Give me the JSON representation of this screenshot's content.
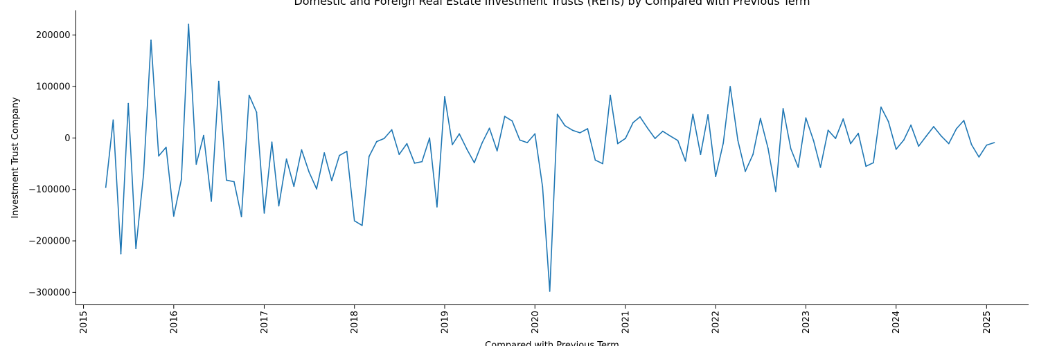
{
  "chart_data": {
    "type": "line",
    "title": "Domestic and Foreign Real Estate Investment Trusts (REITs) by Compared with Previous Term",
    "xlabel": "Compared with Previous Term",
    "ylabel": "Investment Trust Company",
    "xlim": [
      "2014-12-01",
      "2025-06-20"
    ],
    "ylim": [
      -325000,
      248000
    ],
    "grid": false,
    "x_ticks": [
      "2015",
      "2016",
      "2017",
      "2018",
      "2019",
      "2020",
      "2021",
      "2022",
      "2023",
      "2024",
      "2025"
    ],
    "y_ticks": [
      {
        "value": 200000,
        "label": "200000"
      },
      {
        "value": 100000,
        "label": "100000"
      },
      {
        "value": 0,
        "label": "0"
      },
      {
        "value": -100000,
        "label": "−100000"
      },
      {
        "value": -200000,
        "label": "−200000"
      },
      {
        "value": -300000,
        "label": "−300000"
      }
    ],
    "series": [
      {
        "color": "#1f77b4",
        "x": [
          "2015-04",
          "2015-05",
          "2015-06",
          "2015-07",
          "2015-08",
          "2015-09",
          "2015-10",
          "2015-11",
          "2015-12",
          "2016-01",
          "2016-02",
          "2016-03",
          "2016-04",
          "2016-05",
          "2016-06",
          "2016-07",
          "2016-08",
          "2016-09",
          "2016-10",
          "2016-11",
          "2016-12",
          "2017-01",
          "2017-02",
          "2017-03",
          "2017-04",
          "2017-05",
          "2017-06",
          "2017-07",
          "2017-08",
          "2017-09",
          "2017-10",
          "2017-11",
          "2017-12",
          "2018-01",
          "2018-02",
          "2018-03",
          "2018-04",
          "2018-05",
          "2018-06",
          "2018-07",
          "2018-08",
          "2018-09",
          "2018-10",
          "2018-11",
          "2018-12",
          "2019-01",
          "2019-02",
          "2019-03",
          "2019-04",
          "2019-05",
          "2019-06",
          "2019-07",
          "2019-08",
          "2019-09",
          "2019-10",
          "2019-11",
          "2019-12",
          "2020-01",
          "2020-02",
          "2020-03",
          "2020-04",
          "2020-05",
          "2020-06",
          "2020-07",
          "2020-08",
          "2020-09",
          "2020-10",
          "2020-11",
          "2020-12",
          "2021-01",
          "2021-02",
          "2021-03",
          "2021-04",
          "2021-05",
          "2021-06",
          "2021-07",
          "2021-08",
          "2021-09",
          "2021-10",
          "2021-11",
          "2021-12",
          "2022-01",
          "2022-02",
          "2022-03",
          "2022-04",
          "2022-05",
          "2022-06",
          "2022-07",
          "2022-08",
          "2022-09",
          "2022-10",
          "2022-11",
          "2022-12",
          "2023-01",
          "2023-02",
          "2023-03",
          "2023-04",
          "2023-05",
          "2023-06",
          "2023-07",
          "2023-08",
          "2023-09",
          "2023-10",
          "2023-11",
          "2023-12",
          "2024-01",
          "2024-02",
          "2024-03",
          "2024-04",
          "2024-05",
          "2024-06",
          "2024-07",
          "2024-08",
          "2024-09",
          "2024-10",
          "2024-11",
          "2024-12",
          "2025-01",
          "2025-02"
        ],
        "values": [
          -96000,
          35000,
          -225000,
          67000,
          -215000,
          -70000,
          190000,
          -35000,
          -18000,
          -152000,
          -80000,
          221000,
          -51000,
          5000,
          -123000,
          110000,
          -82000,
          -85000,
          -153000,
          83000,
          50000,
          -146000,
          -8000,
          -132000,
          -41000,
          -94000,
          -23000,
          -66000,
          -99000,
          -29000,
          -83000,
          -34000,
          -26000,
          -161000,
          -170000,
          -36000,
          -7000,
          -1000,
          16000,
          -32000,
          -11000,
          -49000,
          -46000,
          0,
          -134000,
          80000,
          -13000,
          8000,
          -22000,
          -48000,
          -10000,
          19000,
          -25000,
          42000,
          33000,
          -4000,
          -9000,
          8000,
          -95000,
          -298000,
          46000,
          24000,
          15000,
          10000,
          18000,
          -43000,
          -50000,
          83000,
          -11000,
          -1000,
          30000,
          41000,
          19000,
          -1000,
          13000,
          4000,
          -5000,
          -45000,
          46000,
          -32000,
          45000,
          -75000,
          -10000,
          100000,
          -5000,
          -65000,
          -32000,
          38000,
          -20000,
          -104000,
          57000,
          -21000,
          -57000,
          39000,
          -5000,
          -57000,
          15000,
          -1000,
          37000,
          -11000,
          9000,
          -55000,
          -48000,
          60000,
          32000,
          -22000,
          -4000,
          25000,
          -16000,
          3000,
          22000,
          4000,
          -11000,
          18000,
          34000,
          -13000,
          -37000,
          -14000,
          -9000
        ]
      }
    ]
  }
}
